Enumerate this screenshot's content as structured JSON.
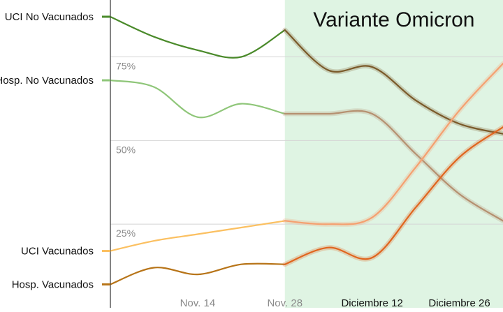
{
  "chart_data": {
    "type": "line",
    "title": "Variante Omicron",
    "xlabel": "",
    "ylabel": "",
    "ylim": [
      0,
      92
    ],
    "y_ticks": [
      "25%",
      "50%",
      "75%"
    ],
    "y_tick_values": [
      25,
      50,
      75
    ],
    "grid": true,
    "x_tick_labels": [
      "Nov. 14",
      "Nov. 28",
      "Diciembre 12",
      "Diciembre 26"
    ],
    "x_tick_positions": [
      2,
      4,
      6,
      8
    ],
    "xlim": [
      0,
      9
    ],
    "highlight": {
      "label": "Variante Omicron",
      "from": 4,
      "to": 9,
      "color": "#dff4e3"
    },
    "x": [
      0,
      1,
      2,
      3,
      4,
      5,
      6,
      7,
      8,
      9
    ],
    "series": [
      {
        "name": "UCI  No Vacunados",
        "color": "#4a8a2a",
        "omicron_color": "#7a5a2a",
        "values": [
          87,
          81,
          77,
          75,
          83,
          71,
          72,
          62,
          55,
          52
        ]
      },
      {
        "name": "Hosp. No Vacunados",
        "color": "#8fc679",
        "omicron_color": "#b59070",
        "values": [
          68,
          66,
          57,
          61,
          58,
          58,
          58,
          46,
          34,
          26
        ]
      },
      {
        "name": "UCI  Vacunados",
        "color": "#fbc061",
        "omicron_color": "#f5a070",
        "values": [
          17,
          20,
          22,
          24,
          26,
          25,
          27,
          42,
          59,
          73
        ]
      },
      {
        "name": "Hosp. Vacunados",
        "color": "#b77418",
        "omicron_color": "#e0651e",
        "values": [
          7,
          12,
          10,
          13,
          13,
          18,
          15,
          30,
          45,
          54
        ]
      }
    ]
  }
}
